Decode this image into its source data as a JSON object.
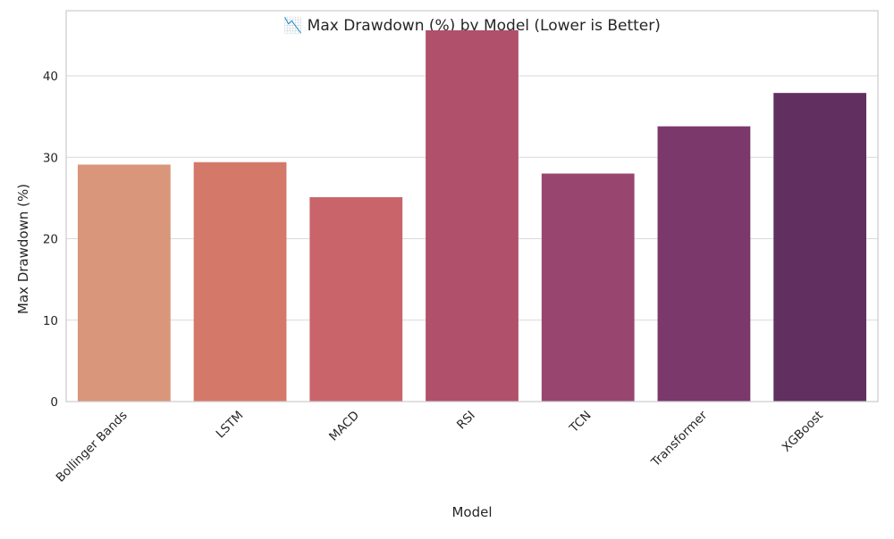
{
  "chart_data": {
    "type": "bar",
    "title": "📉 Max Drawdown (%) by Model (Lower is Better)",
    "xlabel": "Model",
    "ylabel": "Max Drawdown (%)",
    "categories": [
      "Bollinger Bands",
      "LSTM",
      "MACD",
      "RSI",
      "TCN",
      "Transformer",
      "XGBoost"
    ],
    "values": [
      29.1,
      29.4,
      25.1,
      45.6,
      28.0,
      33.8,
      37.9
    ],
    "ylim": [
      0,
      48
    ],
    "yticks": [
      0,
      10,
      20,
      30,
      40
    ],
    "grid": true,
    "legend": "none",
    "colors": [
      "#d9967a",
      "#d4796a",
      "#c9646b",
      "#b1506b",
      "#984670",
      "#7b386b",
      "#623060"
    ],
    "background": "#ffffff",
    "grid_color": "#d9d9dc",
    "spine_color": "#cccccf"
  }
}
